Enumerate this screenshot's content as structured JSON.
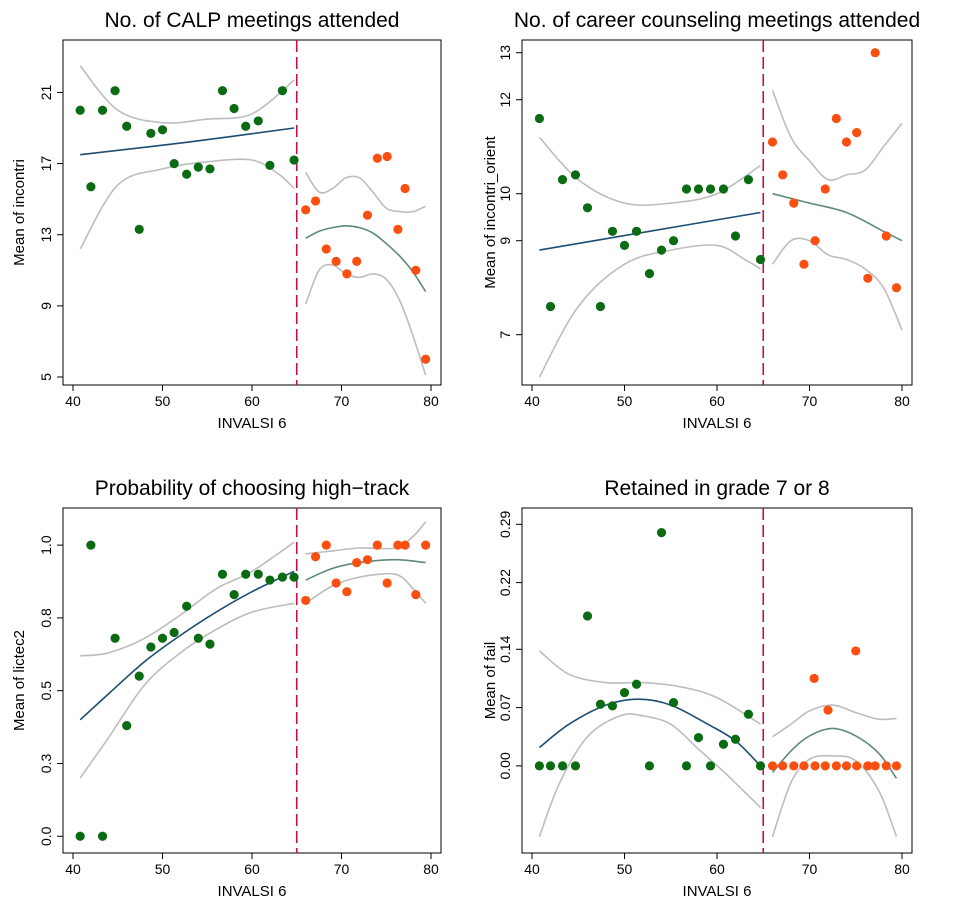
{
  "colors": {
    "left_points": "#0b6b13",
    "right_points": "#fa4f11",
    "left_fit": "#1d4d73",
    "right_fit": "#5f8a7a",
    "ci": "#bdbdbd",
    "cutoff": "#c0134d"
  },
  "chart_data": [
    {
      "type": "scatter",
      "title": "No. of CALP meetings attended",
      "xlabel": "INVALSI 6",
      "ylabel": "Mean of incontri",
      "xlim": [
        40,
        80
      ],
      "ylim": [
        5,
        23.5
      ],
      "xticks": [
        40,
        50,
        60,
        70,
        80
      ],
      "yticks": [
        5,
        9,
        13,
        17,
        21
      ],
      "ytick_labels": [
        "5",
        "9",
        "13",
        "17",
        "21"
      ],
      "cutoff": 65,
      "left_points": [
        [
          40.8,
          20.0
        ],
        [
          42.0,
          15.7
        ],
        [
          43.3,
          20.0
        ],
        [
          44.7,
          21.1
        ],
        [
          46.0,
          19.1
        ],
        [
          47.4,
          13.3
        ],
        [
          48.7,
          18.7
        ],
        [
          50.0,
          18.9
        ],
        [
          51.3,
          17.0
        ],
        [
          52.7,
          16.4
        ],
        [
          54.0,
          16.8
        ],
        [
          55.3,
          16.7
        ],
        [
          56.7,
          21.1
        ],
        [
          58.0,
          20.1
        ],
        [
          59.3,
          19.1
        ],
        [
          60.7,
          19.4
        ],
        [
          62.0,
          16.9
        ],
        [
          63.4,
          21.1
        ],
        [
          64.7,
          17.2
        ]
      ],
      "right_points": [
        [
          66.0,
          14.4
        ],
        [
          67.1,
          14.9
        ],
        [
          68.3,
          12.2
        ],
        [
          69.4,
          11.5
        ],
        [
          70.6,
          10.8
        ],
        [
          71.7,
          11.5
        ],
        [
          72.9,
          14.1
        ],
        [
          74.0,
          17.3
        ],
        [
          75.1,
          17.4
        ],
        [
          76.3,
          13.3
        ],
        [
          77.1,
          15.6
        ],
        [
          78.3,
          11.0
        ],
        [
          79.4,
          6.0
        ]
      ],
      "left_fit": [
        [
          40.8,
          17.5
        ],
        [
          52.7,
          18.2
        ],
        [
          64.7,
          19.0
        ]
      ],
      "left_ci_upper": [
        [
          40.8,
          22.5
        ],
        [
          45.0,
          20.0
        ],
        [
          50.0,
          19.3
        ],
        [
          55.0,
          19.5
        ],
        [
          60.0,
          19.8
        ],
        [
          64.7,
          21.7
        ]
      ],
      "left_ci_lower": [
        [
          40.8,
          12.2
        ],
        [
          45.0,
          15.8
        ],
        [
          50.0,
          16.7
        ],
        [
          55.0,
          17.1
        ],
        [
          60.0,
          17.2
        ],
        [
          63.0,
          16.4
        ],
        [
          64.7,
          15.6
        ]
      ],
      "right_fit": [
        [
          66.0,
          12.8
        ],
        [
          67.5,
          13.2
        ],
        [
          69.0,
          13.4
        ],
        [
          70.5,
          13.5
        ],
        [
          72.0,
          13.4
        ],
        [
          73.5,
          13.1
        ],
        [
          75.0,
          12.5
        ],
        [
          76.5,
          11.8
        ],
        [
          78.0,
          10.9
        ],
        [
          79.4,
          9.8
        ]
      ],
      "right_ci_upper": [
        [
          66.0,
          16.5
        ],
        [
          67.5,
          15.4
        ],
        [
          69.0,
          15.6
        ],
        [
          70.5,
          16.2
        ],
        [
          72.0,
          16.2
        ],
        [
          73.5,
          15.4
        ],
        [
          75.0,
          14.5
        ],
        [
          76.5,
          14.3
        ],
        [
          78.0,
          14.3
        ],
        [
          79.4,
          14.6
        ]
      ],
      "right_ci_lower": [
        [
          66.0,
          9.1
        ],
        [
          67.5,
          11.0
        ],
        [
          69.0,
          11.3
        ],
        [
          70.5,
          10.8
        ],
        [
          72.0,
          10.6
        ],
        [
          73.5,
          10.8
        ],
        [
          75.0,
          10.5
        ],
        [
          76.5,
          9.3
        ],
        [
          78.0,
          7.3
        ],
        [
          79.4,
          5.1
        ]
      ]
    },
    {
      "type": "scatter",
      "title": "No. of career counseling meetings attended",
      "xlabel": "INVALSI 6",
      "ylabel": "Mean of incontri_orient",
      "xlim": [
        40,
        80
      ],
      "ylim": [
        6.1,
        13.1
      ],
      "xticks": [
        40,
        50,
        60,
        70,
        80
      ],
      "yticks": [
        7,
        9,
        10,
        12,
        13
      ],
      "ytick_labels": [
        "7",
        "9",
        "10",
        "12",
        "13"
      ],
      "cutoff": 65,
      "left_points": [
        [
          40.8,
          11.6
        ],
        [
          42.0,
          7.6
        ],
        [
          43.3,
          10.3
        ],
        [
          44.7,
          10.4
        ],
        [
          46.0,
          9.7
        ],
        [
          47.4,
          7.6
        ],
        [
          48.7,
          9.2
        ],
        [
          50.0,
          8.9
        ],
        [
          51.3,
          9.2
        ],
        [
          52.7,
          8.3
        ],
        [
          54.0,
          8.8
        ],
        [
          55.3,
          9.0
        ],
        [
          56.7,
          10.1
        ],
        [
          58.0,
          10.1
        ],
        [
          59.3,
          10.1
        ],
        [
          60.7,
          10.1
        ],
        [
          62.0,
          9.1
        ],
        [
          63.4,
          10.3
        ],
        [
          64.7,
          8.6
        ]
      ],
      "right_points": [
        [
          66.0,
          11.1
        ],
        [
          67.1,
          10.4
        ],
        [
          68.3,
          9.8
        ],
        [
          69.4,
          8.5
        ],
        [
          70.6,
          9.0
        ],
        [
          71.7,
          10.1
        ],
        [
          72.9,
          11.6
        ],
        [
          74.0,
          11.1
        ],
        [
          75.1,
          11.3
        ],
        [
          76.3,
          8.2
        ],
        [
          77.1,
          13.0
        ],
        [
          78.3,
          9.1
        ],
        [
          79.4,
          8.0
        ]
      ],
      "left_fit": [
        [
          40.8,
          8.8
        ],
        [
          52.7,
          9.2
        ],
        [
          64.7,
          9.6
        ]
      ],
      "left_ci_upper": [
        [
          40.8,
          11.2
        ],
        [
          45.0,
          10.3
        ],
        [
          50.0,
          9.8
        ],
        [
          55.0,
          9.8
        ],
        [
          60.0,
          10.0
        ],
        [
          64.7,
          10.6
        ]
      ],
      "left_ci_lower": [
        [
          40.8,
          6.1
        ],
        [
          45.0,
          7.6
        ],
        [
          50.0,
          8.5
        ],
        [
          55.0,
          8.8
        ],
        [
          60.0,
          8.9
        ],
        [
          63.0,
          8.6
        ],
        [
          64.7,
          8.4
        ]
      ],
      "right_fit": [
        [
          66.0,
          10.0
        ],
        [
          70.0,
          9.8
        ],
        [
          74.0,
          9.6
        ],
        [
          78.0,
          9.2
        ],
        [
          80.0,
          9.0
        ]
      ],
      "right_ci_upper": [
        [
          66.0,
          12.2
        ],
        [
          68.0,
          11.2
        ],
        [
          70.0,
          10.7
        ],
        [
          72.0,
          10.3
        ],
        [
          74.0,
          10.4
        ],
        [
          76.0,
          10.5
        ],
        [
          78.0,
          11.0
        ],
        [
          80.0,
          11.5
        ]
      ],
      "right_ci_lower": [
        [
          66.0,
          8.5
        ],
        [
          68.0,
          9.0
        ],
        [
          70.0,
          9.0
        ],
        [
          72.0,
          8.7
        ],
        [
          74.0,
          8.6
        ],
        [
          76.0,
          8.4
        ],
        [
          78.0,
          8.0
        ],
        [
          80.0,
          7.1
        ]
      ]
    },
    {
      "type": "scatter",
      "title": "Probability of choosing high−track",
      "xlabel": "INVALSI 6",
      "ylabel": "Mean of lictec2",
      "xlim": [
        40,
        80
      ],
      "ylim": [
        -0.03,
        1.1
      ],
      "xticks": [
        40,
        50,
        60,
        70,
        80
      ],
      "yticks": [
        0.0,
        0.25,
        0.5,
        0.75,
        1.0
      ],
      "ytick_labels": [
        "0.0",
        "0.3",
        "0.5",
        "0.8",
        "1.0"
      ],
      "cutoff": 65,
      "left_points": [
        [
          40.8,
          0.0
        ],
        [
          42.0,
          1.0
        ],
        [
          43.3,
          0.0
        ],
        [
          44.7,
          0.68
        ],
        [
          46.0,
          0.38
        ],
        [
          47.4,
          0.55
        ],
        [
          48.7,
          0.65
        ],
        [
          50.0,
          0.68
        ],
        [
          51.3,
          0.7
        ],
        [
          52.7,
          0.79
        ],
        [
          54.0,
          0.68
        ],
        [
          55.3,
          0.66
        ],
        [
          56.7,
          0.9
        ],
        [
          58.0,
          0.83
        ],
        [
          59.3,
          0.9
        ],
        [
          60.7,
          0.9
        ],
        [
          62.0,
          0.88
        ],
        [
          63.4,
          0.89
        ],
        [
          64.7,
          0.89
        ]
      ],
      "right_points": [
        [
          66.0,
          0.81
        ],
        [
          67.1,
          0.96
        ],
        [
          68.3,
          1.0
        ],
        [
          69.4,
          0.87
        ],
        [
          70.6,
          0.84
        ],
        [
          71.7,
          0.94
        ],
        [
          72.9,
          0.95
        ],
        [
          74.0,
          1.0
        ],
        [
          75.1,
          0.87
        ],
        [
          76.3,
          1.0
        ],
        [
          77.1,
          1.0
        ],
        [
          78.3,
          0.83
        ],
        [
          79.4,
          1.0
        ]
      ],
      "left_fit": [
        [
          40.8,
          0.4
        ],
        [
          44.0,
          0.49
        ],
        [
          48.0,
          0.6
        ],
        [
          52.0,
          0.69
        ],
        [
          56.0,
          0.77
        ],
        [
          60.0,
          0.84
        ],
        [
          64.7,
          0.91
        ]
      ],
      "left_ci_upper": [
        [
          40.8,
          0.62
        ],
        [
          44.0,
          0.63
        ],
        [
          48.0,
          0.68
        ],
        [
          52.0,
          0.76
        ],
        [
          56.0,
          0.85
        ],
        [
          60.0,
          0.91
        ],
        [
          64.7,
          1.01
        ]
      ],
      "left_ci_lower": [
        [
          40.8,
          0.2
        ],
        [
          44.0,
          0.34
        ],
        [
          48.0,
          0.52
        ],
        [
          52.0,
          0.63
        ],
        [
          56.0,
          0.71
        ],
        [
          60.0,
          0.77
        ],
        [
          64.7,
          0.8
        ]
      ],
      "right_fit": [
        [
          66.0,
          0.88
        ],
        [
          69.0,
          0.92
        ],
        [
          72.0,
          0.94
        ],
        [
          76.0,
          0.95
        ],
        [
          79.4,
          0.94
        ]
      ],
      "right_ci_upper": [
        [
          66.0,
          0.97
        ],
        [
          69.0,
          0.98
        ],
        [
          72.0,
          0.99
        ],
        [
          76.0,
          0.99
        ],
        [
          78.0,
          1.03
        ],
        [
          79.4,
          1.08
        ]
      ],
      "right_ci_lower": [
        [
          66.0,
          0.8
        ],
        [
          69.0,
          0.86
        ],
        [
          72.0,
          0.89
        ],
        [
          76.0,
          0.9
        ],
        [
          78.0,
          0.85
        ],
        [
          79.4,
          0.8
        ]
      ]
    },
    {
      "type": "scatter",
      "title": "Retained in grade 7 or 8",
      "xlabel": "INVALSI 6",
      "ylabel": "Mean of fail",
      "xlim": [
        40,
        80
      ],
      "ylim": [
        -0.095,
        0.3
      ],
      "xticks": [
        40,
        50,
        60,
        70,
        80
      ],
      "yticks": [
        0.0,
        0.07,
        0.14,
        0.22,
        0.29
      ],
      "ytick_labels": [
        "0.00",
        "0.07",
        "0.14",
        "0.22",
        "0.29"
      ],
      "cutoff": 65,
      "left_points": [
        [
          40.8,
          0.0
        ],
        [
          42.0,
          0.0
        ],
        [
          43.3,
          0.0
        ],
        [
          44.7,
          0.0
        ],
        [
          46.0,
          0.18
        ],
        [
          47.4,
          0.074
        ],
        [
          48.7,
          0.072
        ],
        [
          50.0,
          0.088
        ],
        [
          51.3,
          0.098
        ],
        [
          52.7,
          0.0
        ],
        [
          54.0,
          0.28
        ],
        [
          55.3,
          0.076
        ],
        [
          56.7,
          0.0
        ],
        [
          58.0,
          0.034
        ],
        [
          59.3,
          0.0
        ],
        [
          60.7,
          0.026
        ],
        [
          62.0,
          0.032
        ],
        [
          63.4,
          0.062
        ],
        [
          64.7,
          0.0
        ]
      ],
      "right_points": [
        [
          66.0,
          0.0
        ],
        [
          67.1,
          0.0
        ],
        [
          68.3,
          0.0
        ],
        [
          69.4,
          0.0
        ],
        [
          70.6,
          0.0
        ],
        [
          71.7,
          0.0
        ],
        [
          72.9,
          0.0
        ],
        [
          74.0,
          0.0
        ],
        [
          75.1,
          0.0
        ],
        [
          76.3,
          0.0
        ],
        [
          77.1,
          0.0
        ],
        [
          78.3,
          0.0
        ],
        [
          79.4,
          0.0
        ],
        [
          70.5,
          0.105
        ],
        [
          72.0,
          0.067
        ],
        [
          75.0,
          0.138
        ]
      ],
      "left_fit": [
        [
          40.8,
          0.022
        ],
        [
          44.0,
          0.05
        ],
        [
          48.0,
          0.073
        ],
        [
          51.5,
          0.08
        ],
        [
          55.0,
          0.073
        ],
        [
          59.0,
          0.05
        ],
        [
          62.0,
          0.03
        ],
        [
          64.7,
          0.0
        ]
      ],
      "left_ci_upper": [
        [
          40.8,
          0.138
        ],
        [
          44.0,
          0.11
        ],
        [
          48.0,
          0.1
        ],
        [
          52.0,
          0.1
        ],
        [
          56.0,
          0.095
        ],
        [
          60.0,
          0.082
        ],
        [
          64.7,
          0.05
        ]
      ],
      "left_ci_lower": [
        [
          40.8,
          -0.085
        ],
        [
          43.0,
          -0.02
        ],
        [
          46.0,
          0.035
        ],
        [
          49.5,
          0.06
        ],
        [
          52.0,
          0.06
        ],
        [
          55.0,
          0.05
        ],
        [
          58.0,
          0.02
        ],
        [
          61.0,
          -0.01
        ],
        [
          64.7,
          -0.05
        ]
      ],
      "right_fit": [
        [
          66.0,
          -0.008
        ],
        [
          68.0,
          0.018
        ],
        [
          70.0,
          0.036
        ],
        [
          72.5,
          0.045
        ],
        [
          75.0,
          0.036
        ],
        [
          77.5,
          0.015
        ],
        [
          79.4,
          -0.015
        ]
      ],
      "right_ci_upper": [
        [
          66.0,
          0.035
        ],
        [
          68.0,
          0.05
        ],
        [
          70.0,
          0.066
        ],
        [
          72.5,
          0.073
        ],
        [
          75.0,
          0.064
        ],
        [
          77.5,
          0.056
        ],
        [
          79.4,
          0.057
        ]
      ],
      "right_ci_lower": [
        [
          66.0,
          -0.085
        ],
        [
          68.0,
          -0.02
        ],
        [
          70.0,
          0.008
        ],
        [
          72.5,
          0.012
        ],
        [
          75.0,
          0.006
        ],
        [
          77.5,
          -0.03
        ],
        [
          79.4,
          -0.085
        ]
      ]
    }
  ]
}
